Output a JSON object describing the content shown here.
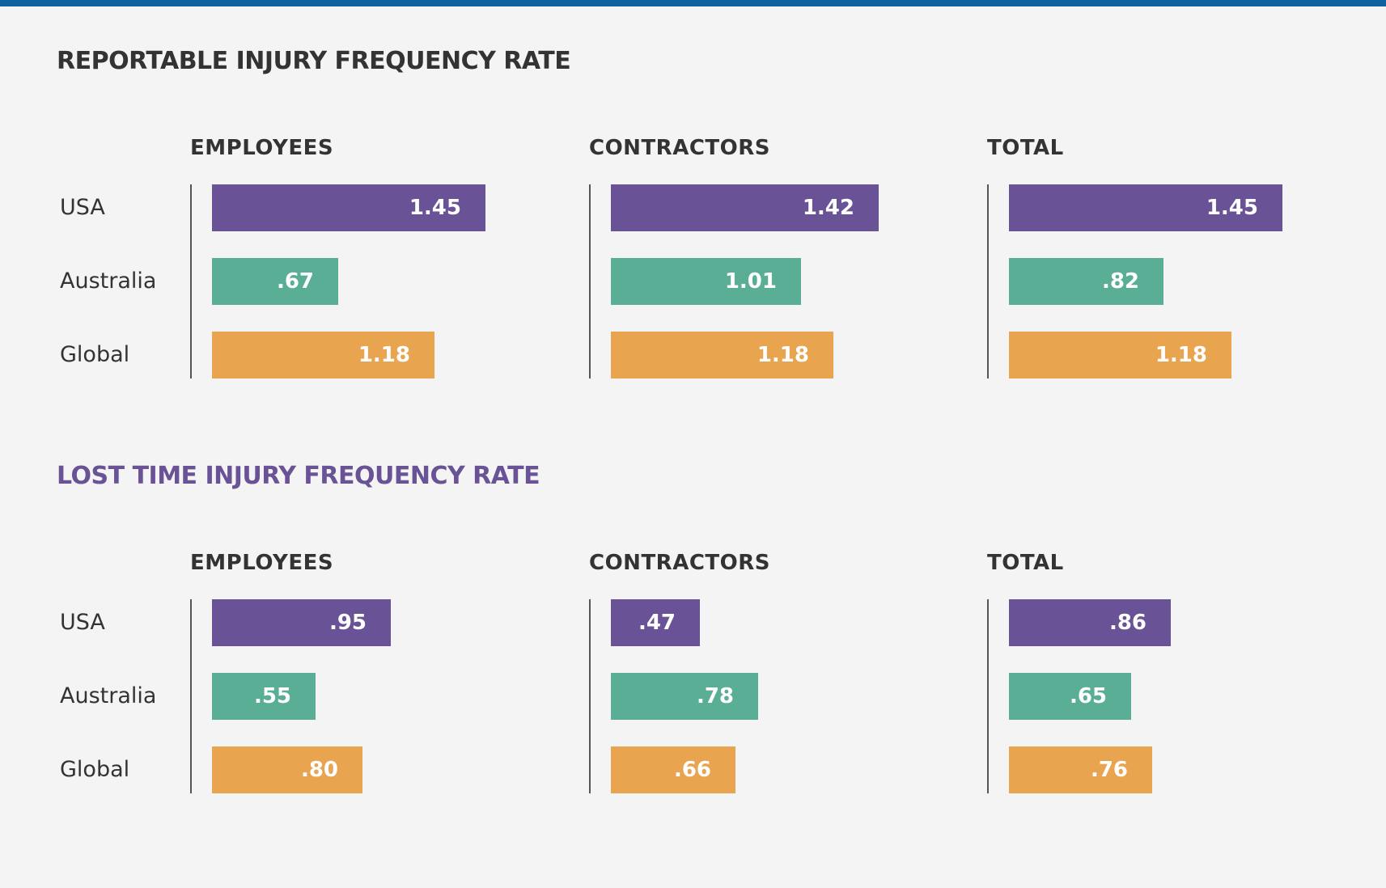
{
  "colors": {
    "top_bar": "#0d62a0",
    "title_1": "#333333",
    "title_2": "#6a5296",
    "usa": "#6a5296",
    "australia": "#5aae95",
    "global": "#e8a44f"
  },
  "row_labels": [
    "USA",
    "Australia",
    "Global"
  ],
  "chart_data": [
    {
      "type": "bar",
      "title": "REPORTABLE INJURY FREQUENCY RATE",
      "orientation": "horizontal",
      "panels": [
        {
          "name": "EMPLOYEES",
          "categories": [
            "USA",
            "Australia",
            "Global"
          ],
          "values": [
            1.45,
            0.67,
            1.18
          ],
          "labels": [
            "1.45",
            ".67",
            "1.18"
          ]
        },
        {
          "name": "CONTRACTORS",
          "categories": [
            "USA",
            "Australia",
            "Global"
          ],
          "values": [
            1.42,
            1.01,
            1.18
          ],
          "labels": [
            "1.42",
            "1.01",
            "1.18"
          ]
        },
        {
          "name": "TOTAL",
          "categories": [
            "USA",
            "Australia",
            "Global"
          ],
          "values": [
            1.45,
            0.82,
            1.18
          ],
          "labels": [
            "1.45",
            ".82",
            "1.18"
          ]
        }
      ]
    },
    {
      "type": "bar",
      "title": "LOST TIME INJURY FREQUENCY RATE",
      "orientation": "horizontal",
      "panels": [
        {
          "name": "EMPLOYEES",
          "categories": [
            "USA",
            "Australia",
            "Global"
          ],
          "values": [
            0.95,
            0.55,
            0.8
          ],
          "labels": [
            ".95",
            ".55",
            ".80"
          ]
        },
        {
          "name": "CONTRACTORS",
          "categories": [
            "USA",
            "Australia",
            "Global"
          ],
          "values": [
            0.47,
            0.78,
            0.66
          ],
          "labels": [
            ".47",
            ".78",
            ".66"
          ]
        },
        {
          "name": "TOTAL",
          "categories": [
            "USA",
            "Australia",
            "Global"
          ],
          "values": [
            0.86,
            0.65,
            0.76
          ],
          "labels": [
            ".86",
            ".65",
            ".76"
          ]
        }
      ]
    }
  ]
}
